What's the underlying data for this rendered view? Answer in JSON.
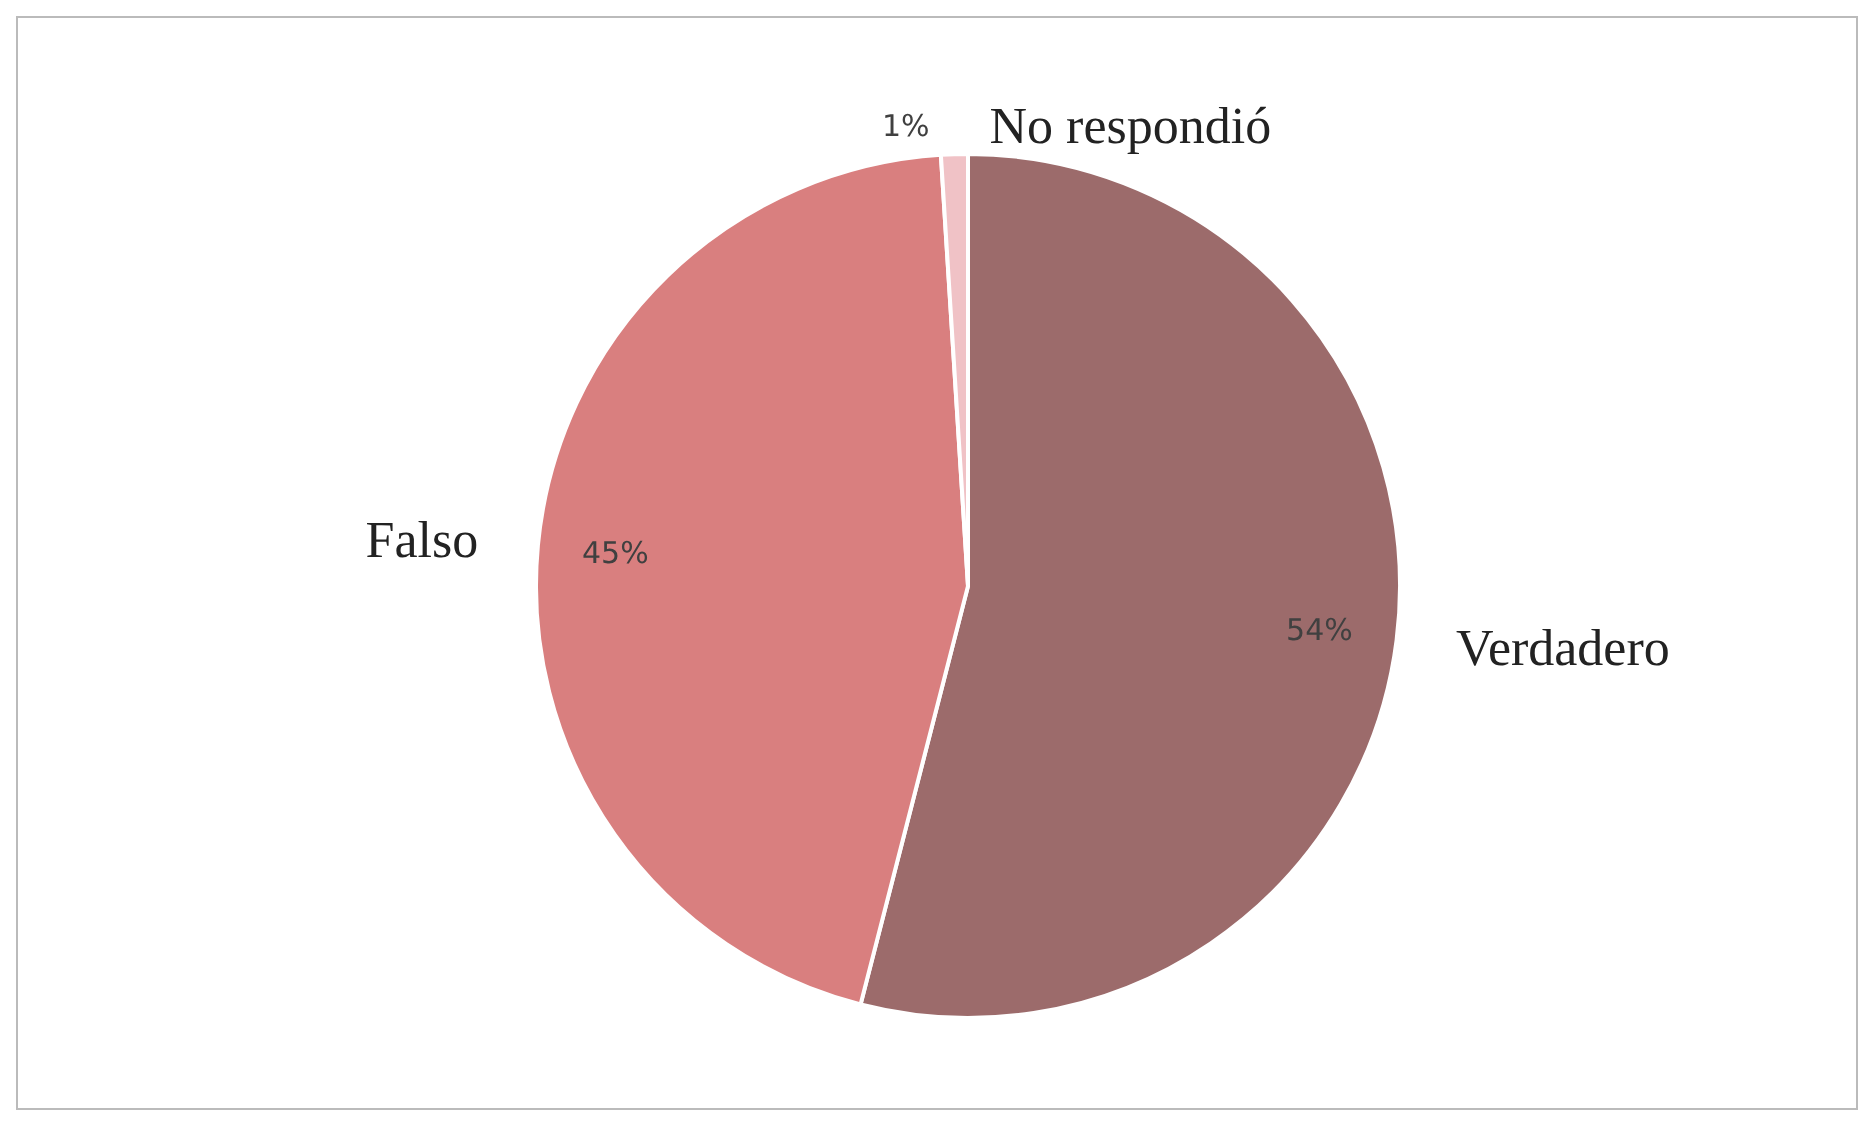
{
  "chart_data": {
    "type": "pie",
    "categories": [
      "Verdadero",
      "Falso",
      "No respondió"
    ],
    "values": [
      54,
      45,
      1
    ],
    "colors": [
      "#9c6b6b",
      "#d97f7f",
      "#f0c2c6"
    ],
    "value_labels": [
      "54%",
      "45%",
      "1%"
    ]
  }
}
